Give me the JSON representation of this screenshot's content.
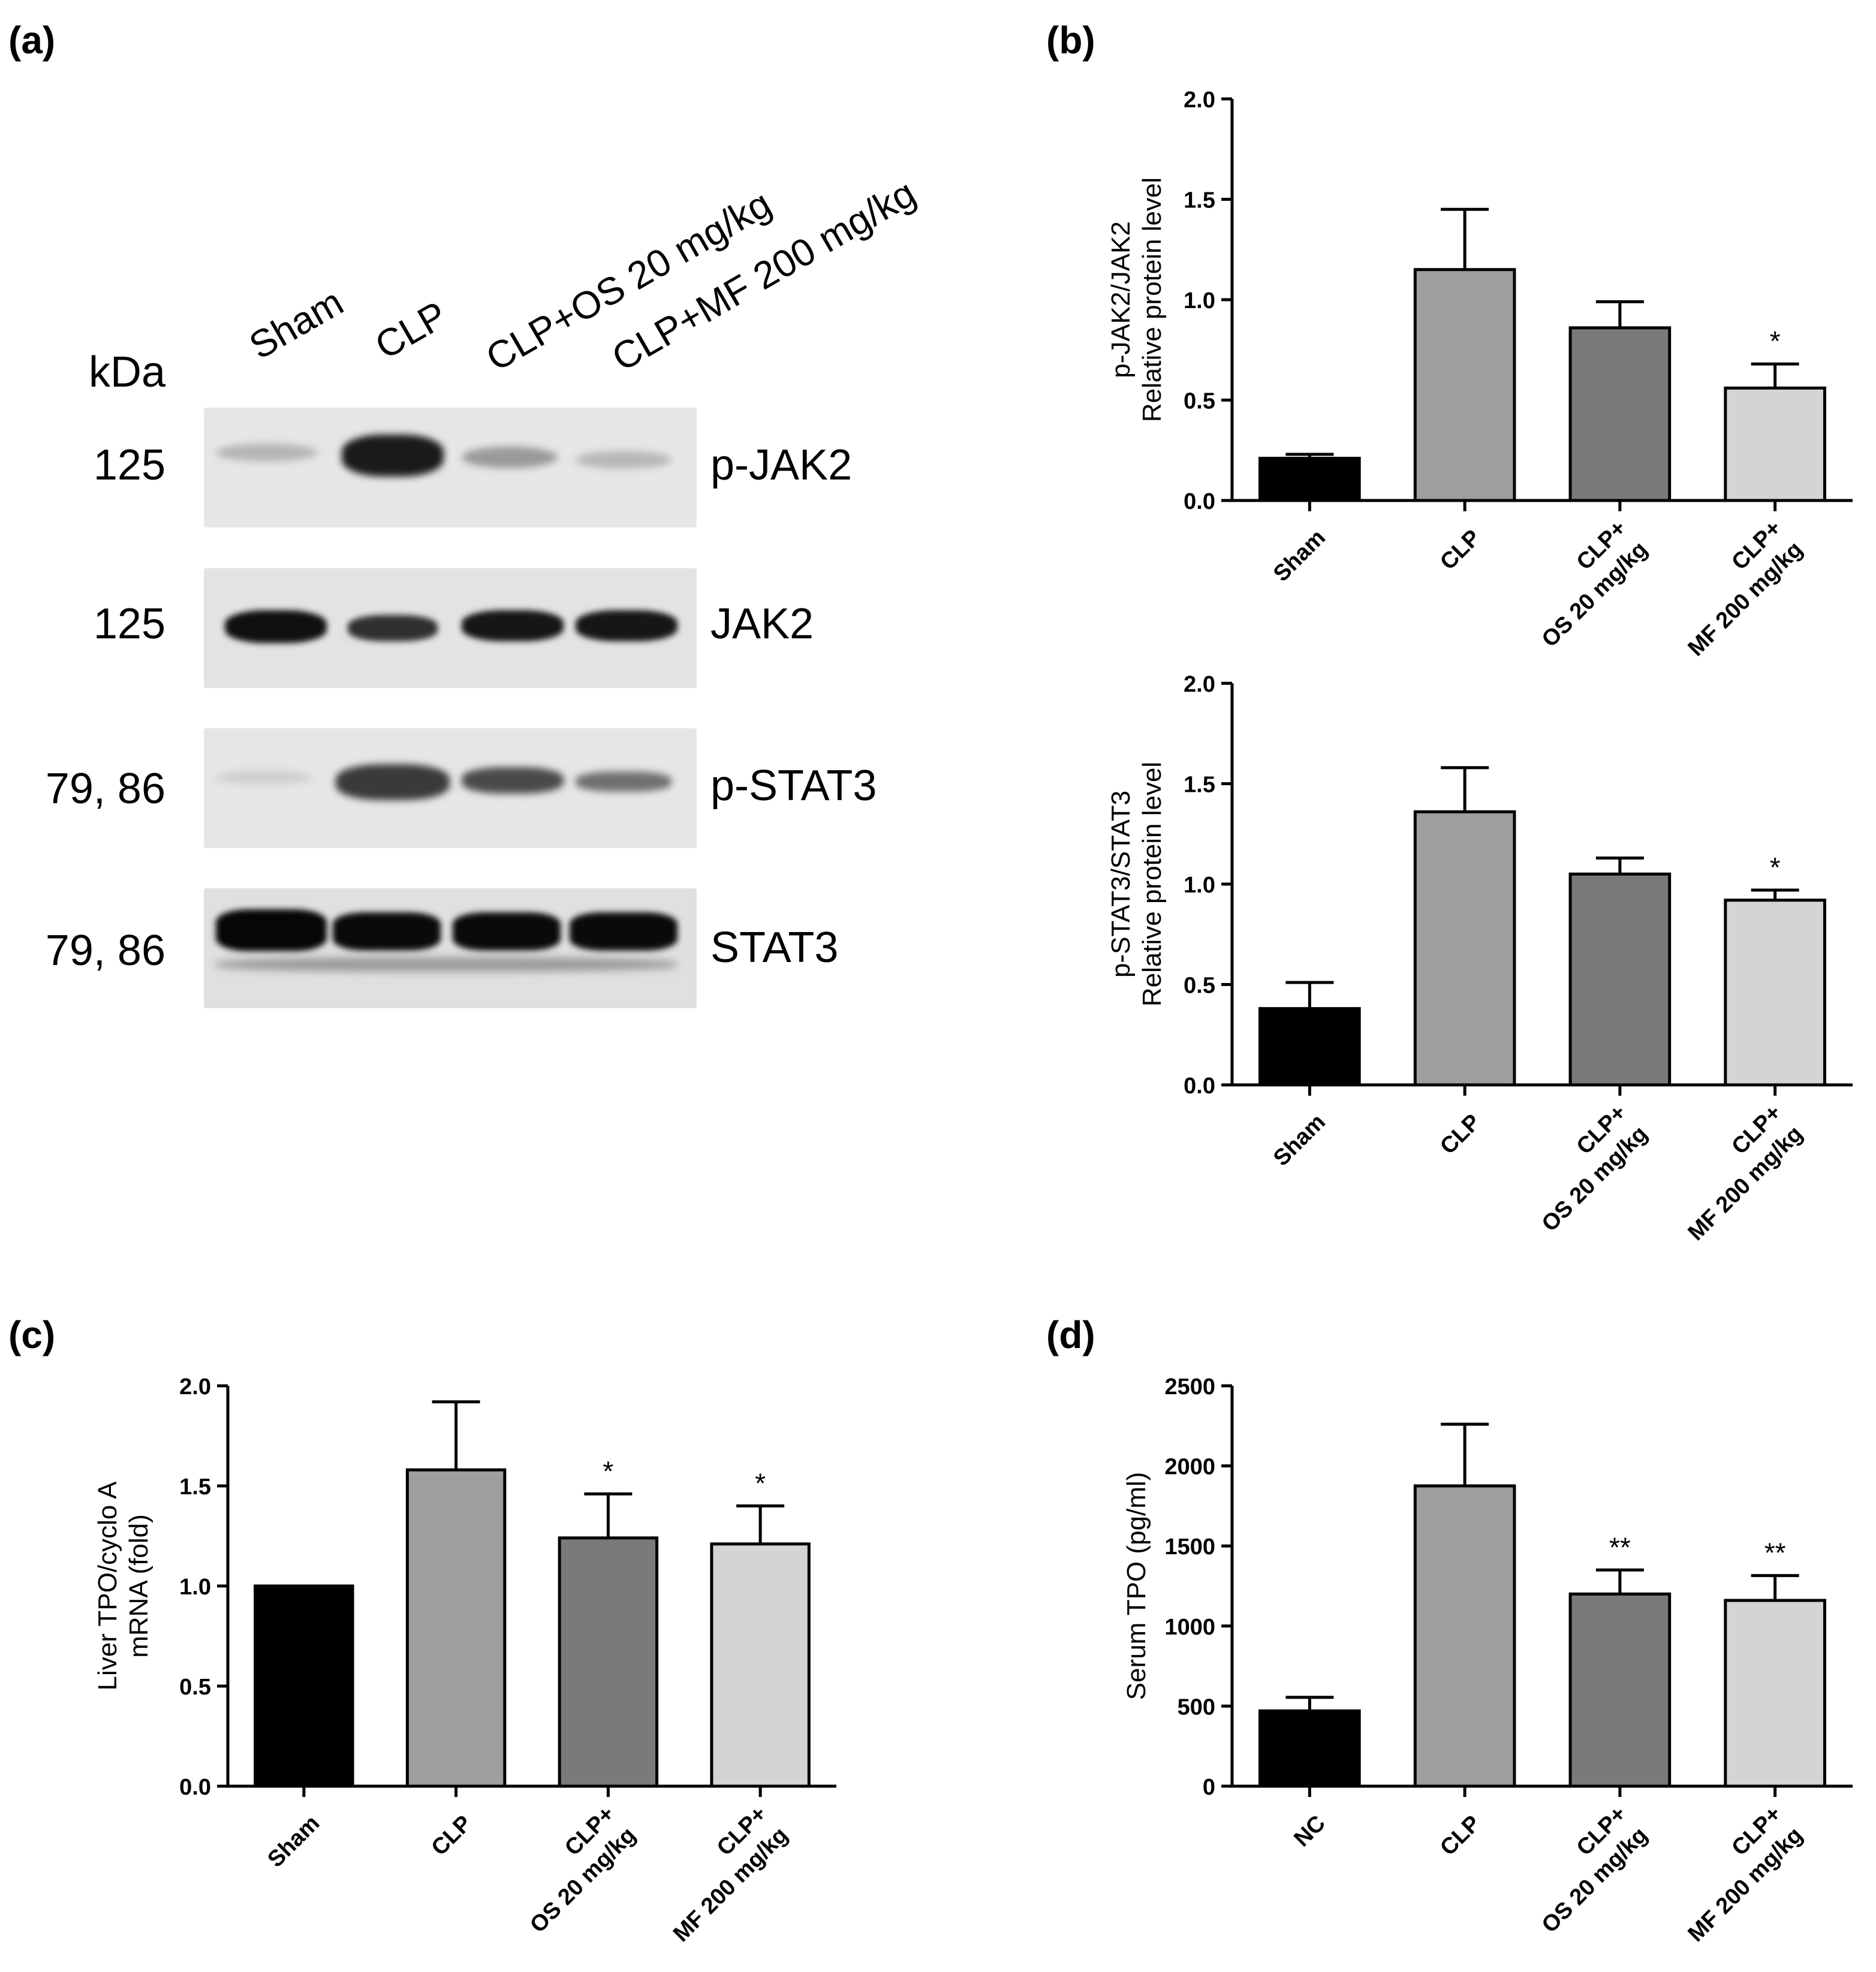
{
  "panel_letters": {
    "a": "(a)",
    "b": "(b)",
    "c": "(c)",
    "d": "(d)"
  },
  "western_blot": {
    "kda_label": "kDa",
    "lanes": [
      "Sham",
      "CLP",
      "CLP+OS 20 mg/kg",
      "CLP+MF 200 mg/kg"
    ],
    "rows": [
      {
        "protein": "p-JAK2",
        "mw": "125"
      },
      {
        "protein": "JAK2",
        "mw": "125"
      },
      {
        "protein": "p-STAT3",
        "mw": "79, 86"
      },
      {
        "protein": "STAT3",
        "mw": "79, 86"
      }
    ]
  },
  "chart_data": [
    {
      "panel": "(b)",
      "type": "bar",
      "ylabel": [
        "p-JAK2/JAK2",
        "Relative protein level"
      ],
      "categories": [
        [
          "Sham"
        ],
        [
          "CLP"
        ],
        [
          "CLP+",
          "OS 20 mg/kg"
        ],
        [
          "CLP+",
          "MF 200 mg/kg"
        ]
      ],
      "values": [
        0.21,
        1.15,
        0.86,
        0.56
      ],
      "errors": [
        0.02,
        0.3,
        0.13,
        0.12
      ],
      "significance": [
        "",
        "",
        "",
        "*"
      ],
      "ylim": [
        0,
        2.0
      ],
      "yticks": [
        "0.0",
        "0.5",
        "1.0",
        "1.5",
        "2.0"
      ],
      "colors": [
        "#000000",
        "#9e9e9e",
        "#7a7a7a",
        "#d4d4d4"
      ]
    },
    {
      "panel": "(b)",
      "type": "bar",
      "ylabel": [
        "p-STAT3/STAT3",
        "Relative protein level"
      ],
      "categories": [
        [
          "Sham"
        ],
        [
          "CLP"
        ],
        [
          "CLP+",
          "OS 20 mg/kg"
        ],
        [
          "CLP+",
          "MF 200 mg/kg"
        ]
      ],
      "values": [
        0.38,
        1.36,
        1.05,
        0.92
      ],
      "errors": [
        0.13,
        0.22,
        0.08,
        0.05
      ],
      "significance": [
        "",
        "",
        "",
        "*"
      ],
      "ylim": [
        0,
        2.0
      ],
      "yticks": [
        "0.0",
        "0.5",
        "1.0",
        "1.5",
        "2.0"
      ],
      "colors": [
        "#000000",
        "#9e9e9e",
        "#7a7a7a",
        "#d4d4d4"
      ]
    },
    {
      "panel": "(c)",
      "type": "bar",
      "ylabel": [
        "Liver TPO/cyclo A",
        "mRNA (fold)"
      ],
      "categories": [
        [
          "Sham"
        ],
        [
          "CLP"
        ],
        [
          "CLP+",
          "OS 20 mg/kg"
        ],
        [
          "CLP+",
          "MF 200 mg/kg"
        ]
      ],
      "values": [
        1.0,
        1.58,
        1.24,
        1.21
      ],
      "errors": [
        0.0,
        0.34,
        0.22,
        0.19
      ],
      "significance": [
        "",
        "",
        "*",
        "*"
      ],
      "ylim": [
        0,
        2.0
      ],
      "yticks": [
        "0.0",
        "0.5",
        "1.0",
        "1.5",
        "2.0"
      ],
      "colors": [
        "#000000",
        "#9e9e9e",
        "#7a7a7a",
        "#d4d4d4"
      ]
    },
    {
      "panel": "(d)",
      "type": "bar",
      "ylabel": [
        "Serum TPO (pg/ml)"
      ],
      "categories": [
        [
          "NC"
        ],
        [
          "CLP"
        ],
        [
          "CLP+",
          "OS 20 mg/kg"
        ],
        [
          "CLP+",
          "MF 200 mg/kg"
        ]
      ],
      "values": [
        470,
        1875,
        1200,
        1160
      ],
      "errors": [
        85,
        385,
        150,
        155
      ],
      "significance": [
        "",
        "",
        "**",
        "**"
      ],
      "ylim": [
        0,
        2500
      ],
      "yticks": [
        "0",
        "500",
        "1000",
        "1500",
        "2000",
        "2500"
      ],
      "colors": [
        "#000000",
        "#9e9e9e",
        "#7a7a7a",
        "#d4d4d4"
      ]
    }
  ]
}
